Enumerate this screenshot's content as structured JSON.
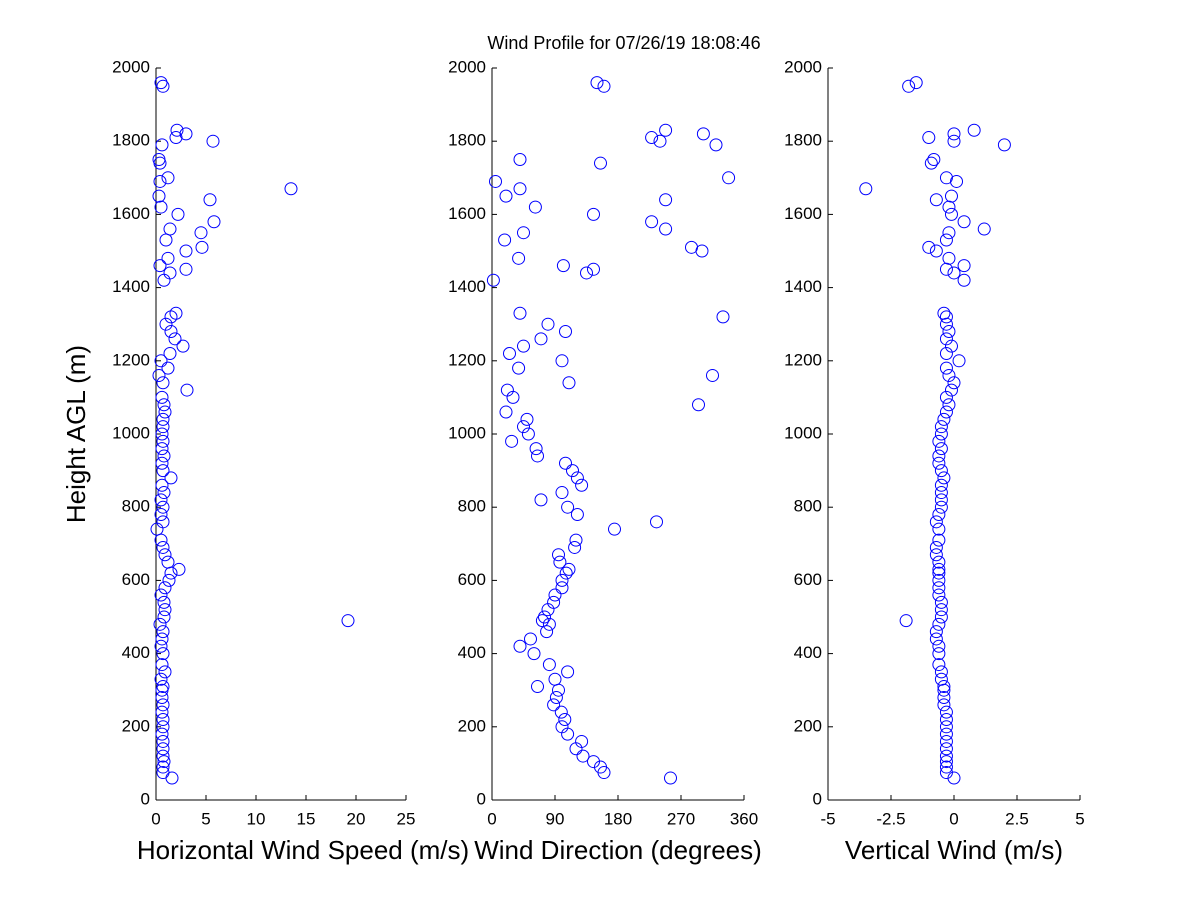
{
  "chart_data": [
    {
      "type": "scatter",
      "title": "Wind Profile for  07/26/19 18:08:46",
      "xlabel": "Horizontal Wind Speed (m/s)",
      "ylabel": "Height AGL (m)",
      "color": "#0000ff",
      "xlim": [
        0,
        25
      ],
      "xticks": [
        0,
        5,
        10,
        15,
        20,
        25
      ],
      "ylim": [
        0,
        2000
      ],
      "yticks": [
        0,
        200,
        400,
        600,
        800,
        1000,
        1200,
        1400,
        1600,
        1800,
        2000
      ],
      "x": [
        1.6,
        0.7,
        0.7,
        0.8,
        0.7,
        0.7,
        0.7,
        0.6,
        0.7,
        0.7,
        0.6,
        0.7,
        0.6,
        0.6,
        0.7,
        0.5,
        0.9,
        0.6,
        0.7,
        0.5,
        0.6,
        0.7,
        0.4,
        19.2,
        0.8,
        0.9,
        0.8,
        0.5,
        0.9,
        1.3,
        1.5,
        2.3,
        1.2,
        0.9,
        0.7,
        0.5,
        0.1,
        0.7,
        0.5,
        0.7,
        0.5,
        0.8,
        0.6,
        1.5,
        0.7,
        0.6,
        0.8,
        0.6,
        0.7,
        0.6,
        0.7,
        0.7,
        0.9,
        0.8,
        0.6,
        3.1,
        0.7,
        0.3,
        1.2,
        0.5,
        1.4,
        2.7,
        1.9,
        1.5,
        1.0,
        1.5,
        2.0,
        0.8,
        1.4,
        3.0,
        0.4,
        1.2,
        3.0,
        4.6,
        1.0,
        4.5,
        1.4,
        5.8,
        2.2,
        0.5,
        5.4,
        0.3,
        13.5,
        0.4,
        1.2,
        0.4,
        0.3,
        0.6,
        5.7,
        2.0,
        3.0,
        2.1,
        0.7,
        0.5
      ],
      "y": [
        60,
        75,
        90,
        105,
        120,
        140,
        160,
        180,
        200,
        220,
        240,
        260,
        280,
        300,
        310,
        330,
        350,
        370,
        400,
        420,
        440,
        460,
        480,
        490,
        500,
        520,
        540,
        560,
        580,
        600,
        620,
        630,
        650,
        670,
        690,
        710,
        740,
        760,
        780,
        800,
        820,
        840,
        860,
        880,
        900,
        920,
        940,
        960,
        980,
        1000,
        1020,
        1040,
        1060,
        1080,
        1100,
        1120,
        1140,
        1160,
        1180,
        1200,
        1220,
        1240,
        1260,
        1280,
        1300,
        1320,
        1330,
        1420,
        1440,
        1450,
        1460,
        1480,
        1500,
        1510,
        1530,
        1550,
        1560,
        1580,
        1600,
        1620,
        1640,
        1650,
        1670,
        1690,
        1700,
        1740,
        1750,
        1790,
        1800,
        1810,
        1820,
        1830,
        1950,
        1960
      ]
    },
    {
      "type": "scatter",
      "xlabel": "Wind Direction (degrees)",
      "color": "#0000ff",
      "xlim": [
        0,
        360
      ],
      "xticks": [
        0,
        90,
        180,
        270,
        360
      ],
      "ylim": [
        0,
        2000
      ],
      "yticks": [
        0,
        200,
        400,
        600,
        800,
        1000,
        1200,
        1400,
        1600,
        1800,
        2000
      ],
      "x": [
        255,
        160,
        155,
        145,
        130,
        120,
        128,
        108,
        100,
        104,
        99,
        88,
        92,
        95,
        65,
        90,
        108,
        82,
        60,
        40,
        55,
        78,
        82,
        72,
        75,
        80,
        88,
        90,
        100,
        100,
        106,
        110,
        97,
        95,
        118,
        120,
        175,
        235,
        122,
        108,
        70,
        100,
        128,
        122,
        115,
        105,
        65,
        63,
        28,
        52,
        45,
        50,
        20,
        295,
        30,
        22,
        110,
        315,
        38,
        100,
        25,
        45,
        70,
        105,
        80,
        330,
        40,
        2,
        135,
        145,
        102,
        38,
        300,
        285,
        18,
        45,
        248,
        228,
        145,
        62,
        248,
        20,
        40,
        5,
        338,
        155,
        40,
        320,
        240,
        228,
        302,
        248,
        160,
        150
      ],
      "y": [
        60,
        75,
        90,
        105,
        120,
        140,
        160,
        180,
        200,
        220,
        240,
        260,
        280,
        300,
        310,
        330,
        350,
        370,
        400,
        420,
        440,
        460,
        480,
        490,
        500,
        520,
        540,
        560,
        580,
        600,
        620,
        630,
        650,
        670,
        690,
        710,
        740,
        760,
        780,
        800,
        820,
        840,
        860,
        880,
        900,
        920,
        940,
        960,
        980,
        1000,
        1020,
        1040,
        1060,
        1080,
        1100,
        1120,
        1140,
        1160,
        1180,
        1200,
        1220,
        1240,
        1260,
        1280,
        1300,
        1320,
        1330,
        1420,
        1440,
        1450,
        1460,
        1480,
        1500,
        1510,
        1530,
        1550,
        1560,
        1580,
        1600,
        1620,
        1640,
        1650,
        1670,
        1690,
        1700,
        1740,
        1750,
        1790,
        1800,
        1810,
        1820,
        1830,
        1950,
        1960
      ]
    },
    {
      "type": "scatter",
      "xlabel": "Vertical Wind (m/s)",
      "color": "#0000ff",
      "xlim": [
        -5,
        5
      ],
      "xticks": [
        -5,
        -2.5,
        0,
        2.5,
        5
      ],
      "ylim": [
        0,
        2000
      ],
      "yticks": [
        0,
        200,
        400,
        600,
        800,
        1000,
        1200,
        1400,
        1600,
        1800,
        2000
      ],
      "x": [
        0.0,
        -0.3,
        -0.3,
        -0.3,
        -0.3,
        -0.3,
        -0.3,
        -0.3,
        -0.3,
        -0.3,
        -0.3,
        -0.4,
        -0.4,
        -0.4,
        -0.4,
        -0.5,
        -0.5,
        -0.6,
        -0.6,
        -0.6,
        -0.7,
        -0.7,
        -0.6,
        -1.9,
        -0.5,
        -0.5,
        -0.5,
        -0.6,
        -0.6,
        -0.6,
        -0.6,
        -0.6,
        -0.6,
        -0.7,
        -0.7,
        -0.6,
        -0.6,
        -0.7,
        -0.6,
        -0.5,
        -0.5,
        -0.5,
        -0.5,
        -0.4,
        -0.5,
        -0.6,
        -0.6,
        -0.5,
        -0.6,
        -0.5,
        -0.5,
        -0.4,
        -0.3,
        -0.2,
        -0.3,
        -0.1,
        0.0,
        -0.2,
        -0.3,
        0.2,
        -0.3,
        -0.1,
        -0.3,
        -0.2,
        -0.3,
        -0.3,
        -0.4,
        0.4,
        0.0,
        -0.3,
        0.4,
        -0.2,
        -0.7,
        -1.0,
        -0.3,
        -0.2,
        1.2,
        0.4,
        -0.1,
        -0.2,
        -0.7,
        -0.1,
        -3.5,
        0.1,
        -0.3,
        -0.9,
        -0.8,
        2.0,
        0.0,
        -1.0,
        0.0,
        0.8,
        -1.8,
        -1.5
      ],
      "y": [
        60,
        75,
        90,
        105,
        120,
        140,
        160,
        180,
        200,
        220,
        240,
        260,
        280,
        300,
        310,
        330,
        350,
        370,
        400,
        420,
        440,
        460,
        480,
        490,
        500,
        520,
        540,
        560,
        580,
        600,
        620,
        630,
        650,
        670,
        690,
        710,
        740,
        760,
        780,
        800,
        820,
        840,
        860,
        880,
        900,
        920,
        940,
        960,
        980,
        1000,
        1020,
        1040,
        1060,
        1080,
        1100,
        1120,
        1140,
        1160,
        1180,
        1200,
        1220,
        1240,
        1260,
        1280,
        1300,
        1320,
        1330,
        1420,
        1440,
        1450,
        1460,
        1480,
        1500,
        1510,
        1530,
        1550,
        1560,
        1580,
        1600,
        1620,
        1640,
        1650,
        1670,
        1690,
        1700,
        1740,
        1750,
        1790,
        1800,
        1810,
        1820,
        1830,
        1950,
        1960
      ]
    }
  ]
}
